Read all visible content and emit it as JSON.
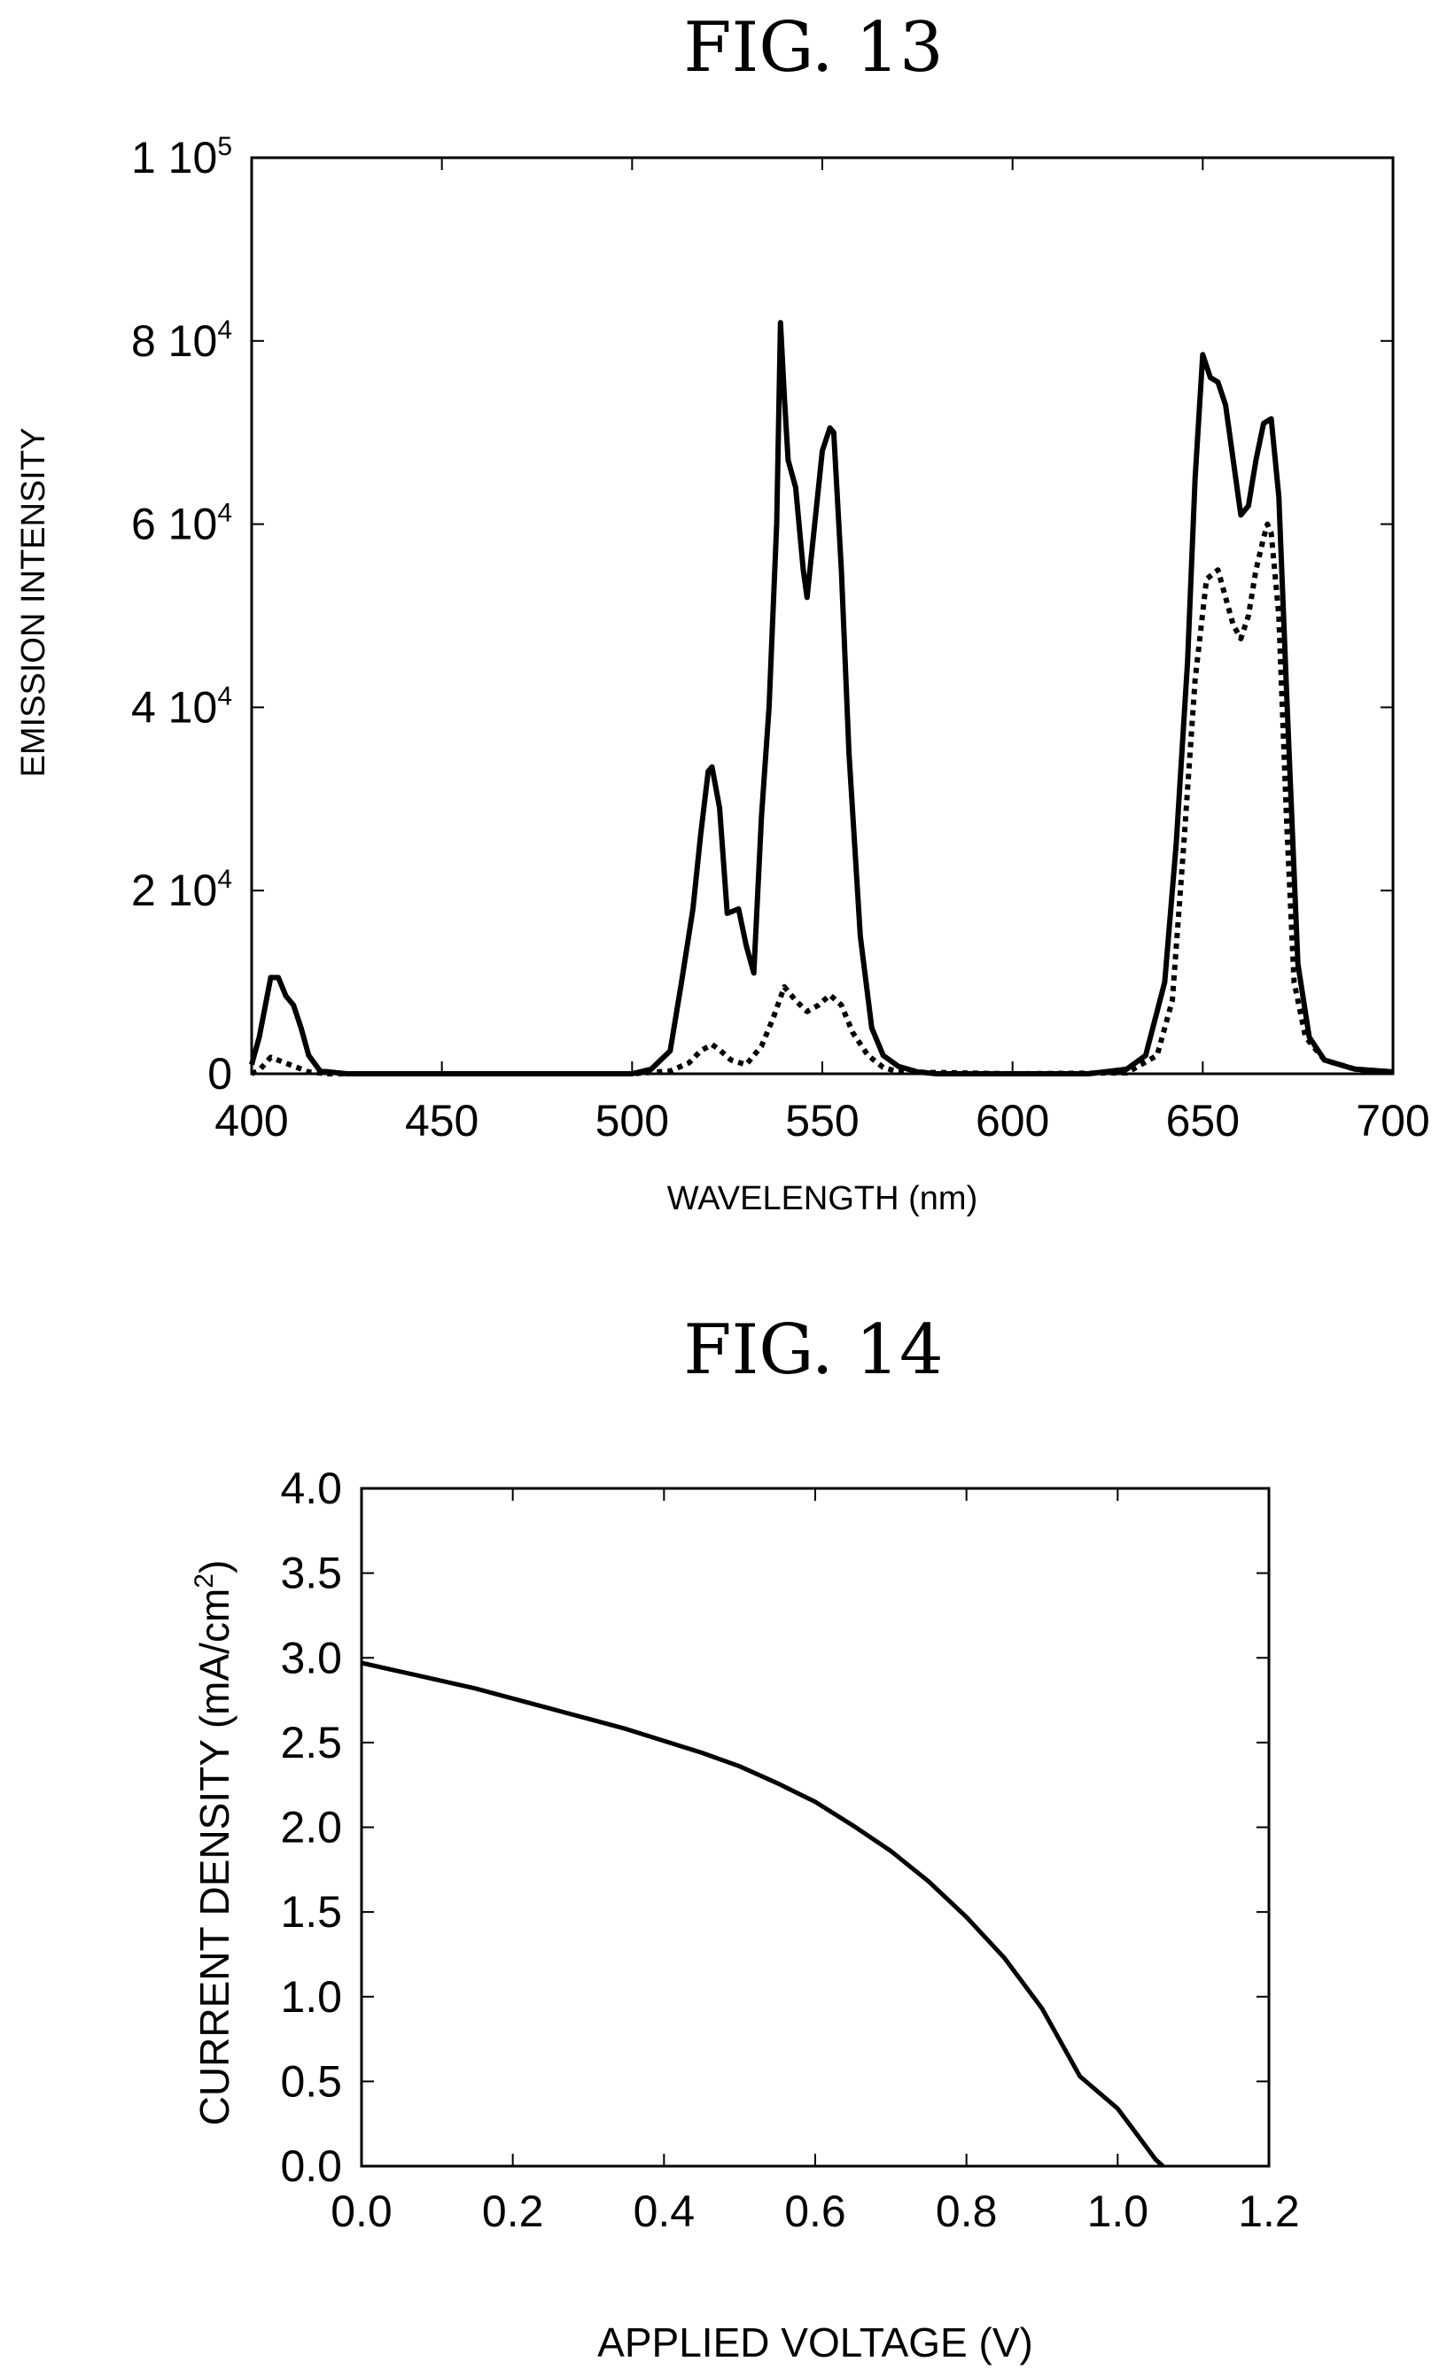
{
  "chart_data": [
    {
      "type": "line",
      "title": "FIG. 13",
      "xlabel": "WAVELENGTH (nm)",
      "ylabel": "EMISSION INTENSITY",
      "xlim": [
        400,
        700
      ],
      "ylim": [
        0,
        100000
      ],
      "x_ticks": [
        "400",
        "450",
        "500",
        "550",
        "600",
        "650",
        "700"
      ],
      "y_ticks": [
        {
          "base": "0",
          "exp": ""
        },
        {
          "base": "2 10",
          "exp": "4"
        },
        {
          "base": "4 10",
          "exp": "4"
        },
        {
          "base": "6 10",
          "exp": "4"
        },
        {
          "base": "8 10",
          "exp": "4"
        },
        {
          "base": "1 10",
          "exp": "5"
        }
      ],
      "grid": false,
      "series": [
        {
          "style": "solid",
          "x": [
            400,
            402,
            405,
            407,
            409,
            411,
            413,
            415,
            418,
            425,
            450,
            500,
            505,
            510,
            513,
            516,
            518,
            520,
            521,
            523,
            525,
            528,
            530,
            532,
            534,
            536,
            538,
            539,
            540,
            541,
            543,
            545,
            546,
            548,
            550,
            552,
            553,
            555,
            557,
            560,
            563,
            566,
            570,
            575,
            580,
            600,
            620,
            630,
            635,
            640,
            643,
            646,
            648,
            650,
            652,
            654,
            656,
            658,
            660,
            662,
            664,
            666,
            668,
            670,
            672,
            675,
            678,
            682,
            690,
            700
          ],
          "y": [
            1000,
            4000,
            10500,
            10500,
            8500,
            7500,
            5000,
            2000,
            300,
            0,
            0,
            0,
            500,
            2500,
            10000,
            18000,
            26000,
            33000,
            33500,
            29000,
            17500,
            18000,
            14000,
            11000,
            28000,
            40000,
            60000,
            82000,
            74000,
            67000,
            64000,
            55000,
            52000,
            60000,
            68000,
            70500,
            70000,
            55000,
            35000,
            15000,
            5000,
            2000,
            800,
            200,
            0,
            0,
            0,
            500,
            2000,
            10000,
            25000,
            45000,
            65000,
            78500,
            76000,
            75500,
            73000,
            67000,
            61000,
            62000,
            67000,
            71000,
            71500,
            63000,
            42000,
            12000,
            4000,
            1500,
            500,
            200
          ]
        },
        {
          "style": "dotted",
          "x": [
            400,
            402,
            405,
            410,
            415,
            420,
            470,
            500,
            510,
            515,
            518,
            521,
            523,
            526,
            530,
            534,
            537,
            540,
            543,
            546,
            549,
            552,
            555,
            558,
            562,
            566,
            570,
            600,
            630,
            638,
            642,
            645,
            648,
            651,
            654,
            656,
            658,
            660,
            662,
            664,
            666,
            667,
            668,
            670,
            672,
            674,
            677,
            682,
            690,
            700
          ],
          "y": [
            0,
            400,
            1800,
            1000,
            200,
            0,
            0,
            0,
            300,
            1200,
            2500,
            3200,
            2600,
            1500,
            1000,
            3000,
            6000,
            9500,
            8000,
            6800,
            7500,
            8600,
            7500,
            4500,
            2000,
            700,
            200,
            0,
            100,
            2000,
            8000,
            25000,
            43000,
            54000,
            55000,
            52000,
            49000,
            47500,
            50000,
            55000,
            58500,
            60000,
            59000,
            50000,
            28000,
            10000,
            4000,
            1500,
            500,
            200
          ]
        }
      ]
    },
    {
      "type": "line",
      "title": "FIG. 14",
      "xlabel": "APPLIED VOLTAGE  (V)",
      "ylabel": "CURRENT DENSITY  (mA/cm",
      "ylabel_sup": "2",
      "ylabel_close": ")",
      "xlim": [
        0,
        1.2
      ],
      "ylim": [
        0,
        4.0
      ],
      "x_ticks": [
        "0.0",
        "0.2",
        "0.4",
        "0.6",
        "0.8",
        "1.0",
        "1.2"
      ],
      "y_ticks": [
        "0.0",
        "0.5",
        "1.0",
        "1.5",
        "2.0",
        "2.5",
        "3.0",
        "3.5",
        "4.0"
      ],
      "grid": false,
      "series": [
        {
          "style": "solid",
          "x": [
            0.0,
            0.05,
            0.1,
            0.15,
            0.2,
            0.25,
            0.3,
            0.35,
            0.4,
            0.45,
            0.5,
            0.55,
            0.6,
            0.65,
            0.7,
            0.75,
            0.8,
            0.85,
            0.9,
            0.95,
            1.0,
            1.02,
            1.04,
            1.05,
            1.06
          ],
          "y": [
            2.97,
            2.92,
            2.87,
            2.82,
            2.76,
            2.7,
            2.64,
            2.58,
            2.51,
            2.44,
            2.36,
            2.26,
            2.15,
            2.01,
            1.86,
            1.68,
            1.47,
            1.23,
            0.93,
            0.53,
            0.34,
            0.22,
            0.1,
            0.04,
            0.0
          ]
        }
      ]
    }
  ]
}
